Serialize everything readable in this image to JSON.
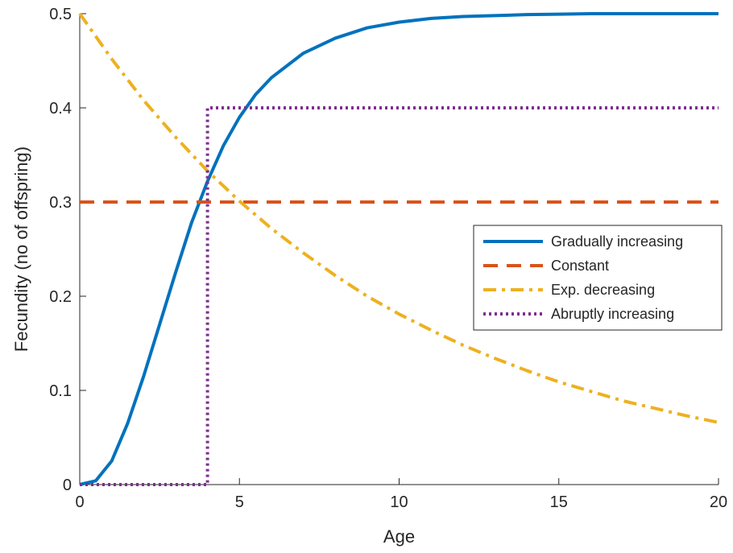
{
  "chart_data": {
    "type": "line",
    "xlabel": "Age",
    "ylabel": "Fecundity (no of offspring)",
    "xlim": [
      0,
      20
    ],
    "ylim": [
      0,
      0.5
    ],
    "xticks": [
      0,
      5,
      10,
      15,
      20
    ],
    "yticks": [
      0,
      0.1,
      0.2,
      0.3,
      0.4,
      0.5
    ],
    "xtick_labels": [
      "0",
      "5",
      "10",
      "15",
      "20"
    ],
    "ytick_labels": [
      "0",
      "0.1",
      "0.2",
      "0.3",
      "0.4",
      "0.5"
    ],
    "grid": false,
    "legend_position": "right",
    "series": [
      {
        "name": "Gradually increasing",
        "color": "#0072BD",
        "style": "solid",
        "x": [
          0,
          0.5,
          1,
          1.5,
          2,
          2.5,
          3,
          3.5,
          4,
          4.5,
          5,
          5.5,
          6,
          7,
          8,
          9,
          10,
          11,
          12,
          13,
          14,
          15,
          16,
          18,
          20
        ],
        "y": [
          0,
          0.004,
          0.025,
          0.065,
          0.115,
          0.17,
          0.225,
          0.278,
          0.322,
          0.36,
          0.39,
          0.414,
          0.432,
          0.458,
          0.474,
          0.485,
          0.491,
          0.495,
          0.497,
          0.498,
          0.499,
          0.4995,
          0.5,
          0.5,
          0.5
        ]
      },
      {
        "name": "Constant",
        "color": "#D95319",
        "style": "dashed",
        "x": [
          0,
          20
        ],
        "y": [
          0.3,
          0.3
        ]
      },
      {
        "name": "Exp. decreasing",
        "color": "#EDB120",
        "style": "dashdot",
        "x": [
          0,
          1,
          2,
          3,
          4,
          5,
          6,
          7,
          8,
          9,
          10,
          11,
          12,
          13,
          14,
          15,
          16,
          17,
          18,
          19,
          20
        ],
        "y": [
          0.5,
          0.452,
          0.408,
          0.369,
          0.333,
          0.301,
          0.272,
          0.246,
          0.222,
          0.2,
          0.181,
          0.164,
          0.148,
          0.134,
          0.121,
          0.109,
          0.099,
          0.089,
          0.081,
          0.073,
          0.066
        ]
      },
      {
        "name": "Abruptly increasing",
        "color": "#7E2F8E",
        "style": "dotted",
        "x": [
          0,
          4,
          4,
          20
        ],
        "y": [
          0,
          0,
          0.4,
          0.4
        ]
      }
    ]
  }
}
